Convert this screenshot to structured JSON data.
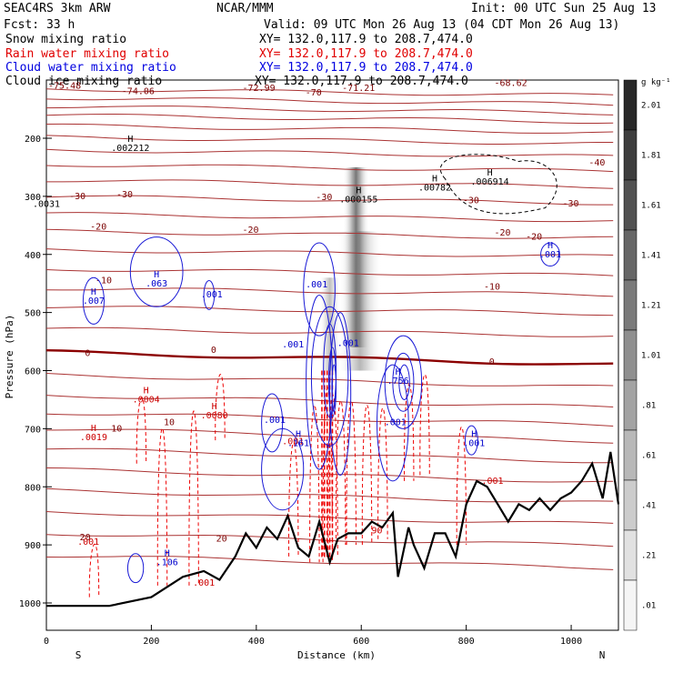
{
  "header": {
    "model": "SEAC4RS  3km ARW",
    "center": "NCAR/MMM",
    "init": "Init: 00 UTC Sun 25 Aug 13",
    "fcst": "Fcst:   33 h",
    "valid": "Valid: 09 UTC Mon 26 Aug 13 (04 CDT Mon 26 Aug 13)",
    "xy": "XY= 132.0,117.9 to 208.7,474.0"
  },
  "legend": [
    {
      "label": "Snow mixing ratio",
      "xy": "XY= 132.0,117.9 to 208.7,474.0",
      "color": "#000000"
    },
    {
      "label": "Rain water mixing ratio",
      "xy": "XY= 132.0,117.9 to 208.7,474.0",
      "color": "#e00000"
    },
    {
      "label": "Cloud water mixing ratio",
      "xy": "XY= 132.0,117.9 to 208.7,474.0",
      "color": "#0000e0"
    },
    {
      "label": "Cloud ice mixing ratio",
      "xy": "XY= 132.0,117.9 to 208.7,474.0",
      "color": "#000000"
    }
  ],
  "chart_data": {
    "type": "contour",
    "xlabel": "Distance (km)",
    "ylabel": "Pressure (hPa)",
    "xlim": [
      0,
      1090
    ],
    "ylim": [
      1050,
      100
    ],
    "x_ticks": [
      0,
      200,
      400,
      600,
      800,
      1000
    ],
    "y_ticks": [
      200,
      300,
      400,
      500,
      600,
      700,
      800,
      900,
      1000
    ],
    "x_end_labels": {
      "left": "S",
      "right": "N"
    },
    "colorbar": {
      "unit": "g kg⁻¹",
      "labels": [
        "2.01",
        "1.81",
        "1.61",
        "1.41",
        "1.21",
        "1.01",
        ".81",
        ".61",
        ".41",
        ".21",
        ".01"
      ],
      "values": [
        2.01,
        1.81,
        1.61,
        1.41,
        1.21,
        1.01,
        0.81,
        0.61,
        0.41,
        0.21,
        0.01
      ]
    },
    "temperature_contours": [
      {
        "label": "-75.48",
        "x": 0,
        "p": 110
      },
      {
        "label": "-74.06",
        "x": 140,
        "p": 119
      },
      {
        "label": "-72.99",
        "x": 370,
        "p": 114
      },
      {
        "label": "-70",
        "x": 490,
        "p": 122
      },
      {
        "label": "-71.21",
        "x": 560,
        "p": 114
      },
      {
        "label": "-68.62",
        "x": 850,
        "p": 105
      },
      {
        "label": "-40",
        "x": 1030,
        "p": 242
      },
      {
        "label": "-30",
        "x": 40,
        "p": 300
      },
      {
        "label": "-30",
        "x": 130,
        "p": 297
      },
      {
        "label": "-30",
        "x": 510,
        "p": 302
      },
      {
        "label": "-30",
        "x": 790,
        "p": 307
      },
      {
        "label": "-30",
        "x": 980,
        "p": 313
      },
      {
        "label": "-20",
        "x": 80,
        "p": 353
      },
      {
        "label": "-20",
        "x": 370,
        "p": 358
      },
      {
        "label": "-20",
        "x": 850,
        "p": 363
      },
      {
        "label": "-20",
        "x": 910,
        "p": 370
      },
      {
        "label": "-10",
        "x": 90,
        "p": 445
      },
      {
        "label": "-10",
        "x": 830,
        "p": 456
      },
      {
        "label": "0",
        "x": 70,
        "p": 570
      },
      {
        "label": "0",
        "x": 310,
        "p": 565
      },
      {
        "label": "0",
        "x": 840,
        "p": 585
      },
      {
        "label": "10",
        "x": 220,
        "p": 689
      },
      {
        "label": "10",
        "x": 120,
        "p": 700
      },
      {
        "label": "20",
        "x": 60,
        "p": 887
      },
      {
        "label": "20",
        "x": 320,
        "p": 890
      }
    ],
    "annotations": [
      {
        "species": "snow",
        "text": "H",
        "value": ".002212",
        "x": 160,
        "p": 222
      },
      {
        "species": "snow",
        "text": "H",
        "value": ".000155",
        "x": 595,
        "p": 310
      },
      {
        "species": "snow",
        "text": "H",
        "value": ".00782",
        "x": 740,
        "p": 290
      },
      {
        "species": "snow",
        "text": "H",
        "value": ".006914",
        "x": 845,
        "p": 280
      },
      {
        "species": "snow",
        "text": "",
        "value": ".0031",
        "x": 0,
        "p": 318
      },
      {
        "species": "rain",
        "text": "H",
        "value": ".0004",
        "x": 190,
        "p": 655
      },
      {
        "species": "rain",
        "text": "H",
        "value": ".0080",
        "x": 320,
        "p": 682
      },
      {
        "species": "rain",
        "text": "H",
        "value": ".0019",
        "x": 90,
        "p": 720
      },
      {
        "species": "rain",
        "text": "",
        "value": ".001",
        "x": 470,
        "p": 727
      },
      {
        "species": "rain",
        "text": "",
        "value": ".001",
        "x": 850,
        "p": 795
      },
      {
        "species": "rain",
        "text": "",
        "value": ".001",
        "x": 80,
        "p": 900
      },
      {
        "species": "rain",
        "text": "",
        "value": ".001",
        "x": 300,
        "p": 970
      },
      {
        "species": "rain",
        "text": "",
        "value": "90",
        "x": 630,
        "p": 880
      },
      {
        "species": "cloud",
        "text": "H",
        "value": ".063",
        "x": 210,
        "p": 455
      },
      {
        "species": "cloud",
        "text": "H",
        "value": ".007",
        "x": 90,
        "p": 485
      },
      {
        "species": "cloud",
        "text": "",
        "value": ".001",
        "x": 315,
        "p": 474
      },
      {
        "species": "cloud",
        "text": "",
        "value": ".001",
        "x": 515,
        "p": 457
      },
      {
        "species": "cloud",
        "text": "",
        "value": ".001",
        "x": 470,
        "p": 560
      },
      {
        "species": "cloud",
        "text": "",
        "value": ".001",
        "x": 575,
        "p": 558
      },
      {
        "species": "cloud",
        "text": "H",
        "value": ".001",
        "x": 960,
        "p": 405
      },
      {
        "species": "cloud",
        "text": "H",
        "value": ".001",
        "x": 815,
        "p": 730
      },
      {
        "species": "cloud",
        "text": "H",
        "value": ".756",
        "x": 670,
        "p": 623
      },
      {
        "species": "cloud",
        "text": "",
        "value": ".001",
        "x": 665,
        "p": 694
      },
      {
        "species": "cloud",
        "text": "H",
        "value": ".161",
        "x": 480,
        "p": 730
      },
      {
        "species": "cloud",
        "text": "H",
        "value": ".106",
        "x": 230,
        "p": 935
      },
      {
        "species": "cloud",
        "text": "",
        "value": ".001",
        "x": 435,
        "p": 690
      }
    ]
  }
}
